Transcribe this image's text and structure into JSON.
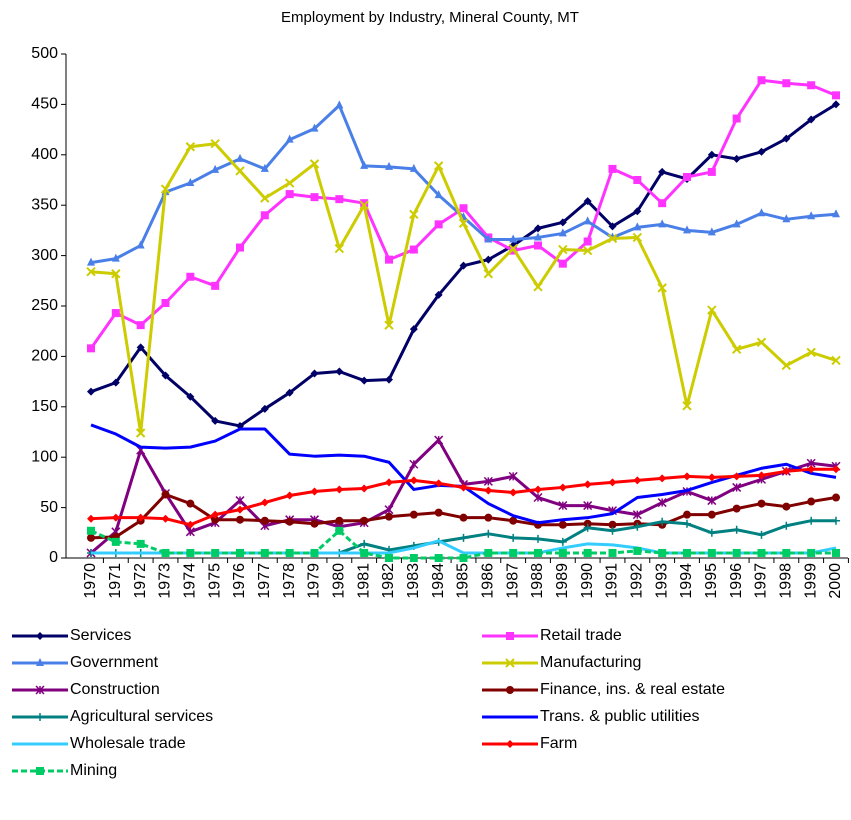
{
  "chart_data": {
    "type": "line",
    "title": "Employment by Industry, Mineral County, MT",
    "categories": [
      "1970",
      "1971",
      "1972",
      "1973",
      "1974",
      "1975",
      "1976",
      "1977",
      "1978",
      "1979",
      "1980",
      "1981",
      "1982",
      "1983",
      "1984",
      "1985",
      "1986",
      "1987",
      "1988",
      "1989",
      "1990",
      "1991",
      "1992",
      "1993",
      "1994",
      "1995",
      "1996",
      "1997",
      "1998",
      "1999",
      "2000"
    ],
    "ylim": [
      0,
      500
    ],
    "yticks": [
      0,
      50,
      100,
      150,
      200,
      250,
      300,
      350,
      400,
      450,
      500
    ],
    "grid": false,
    "series": [
      {
        "name": "Services",
        "color": "#000066",
        "marker": "diamond",
        "values": [
          165,
          174,
          209,
          181,
          160,
          136,
          131,
          148,
          164,
          183,
          185,
          176,
          177,
          227,
          261,
          290,
          296,
          310,
          327,
          333,
          354,
          329,
          344,
          383,
          376,
          400,
          396,
          403,
          416,
          435,
          450
        ]
      },
      {
        "name": "Retail trade",
        "color": "#FF33FF",
        "marker": "square",
        "values": [
          208,
          243,
          231,
          253,
          279,
          270,
          308,
          340,
          361,
          358,
          356,
          352,
          296,
          306,
          331,
          347,
          318,
          305,
          310,
          292,
          314,
          386,
          375,
          352,
          378,
          383,
          436,
          474,
          471,
          469,
          459
        ]
      },
      {
        "name": "Government",
        "color": "#4A7FE8",
        "marker": "triangle",
        "values": [
          293,
          297,
          310,
          363,
          372,
          385,
          396,
          386,
          415,
          426,
          449,
          389,
          388,
          386,
          360,
          338,
          316,
          316,
          318,
          322,
          334,
          318,
          328,
          331,
          325,
          323,
          331,
          342,
          336,
          339,
          341
        ]
      },
      {
        "name": "Manufacturing",
        "color": "#CCCC00",
        "marker": "x",
        "values": [
          284,
          282,
          124,
          366,
          408,
          411,
          384,
          357,
          372,
          391,
          307,
          350,
          231,
          341,
          389,
          332,
          282,
          307,
          269,
          306,
          305,
          317,
          318,
          268,
          151,
          246,
          207,
          214,
          191,
          204,
          196
        ]
      },
      {
        "name": "Construction",
        "color": "#800080",
        "marker": "star",
        "values": [
          5,
          26,
          107,
          64,
          26,
          35,
          57,
          32,
          38,
          38,
          31,
          35,
          48,
          93,
          117,
          73,
          76,
          81,
          60,
          52,
          52,
          47,
          43,
          55,
          66,
          57,
          70,
          78,
          86,
          94,
          91
        ]
      },
      {
        "name": "Finance, ins. & real estate",
        "color": "#800000",
        "marker": "circle",
        "values": [
          20,
          21,
          37,
          63,
          54,
          38,
          38,
          37,
          36,
          34,
          37,
          37,
          41,
          43,
          45,
          40,
          40,
          37,
          33,
          33,
          34,
          33,
          34,
          33,
          43,
          43,
          49,
          54,
          51,
          56,
          60
        ]
      },
      {
        "name": "Agricultural services",
        "color": "#008080",
        "marker": "plus",
        "values": [
          5,
          5,
          5,
          5,
          5,
          5,
          5,
          5,
          5,
          5,
          5,
          14,
          8,
          12,
          16,
          20,
          24,
          20,
          19,
          16,
          30,
          27,
          31,
          36,
          34,
          25,
          28,
          23,
          32,
          37,
          37
        ]
      },
      {
        "name": "Trans. & public utilities",
        "color": "#0000FF",
        "marker": "none",
        "values": [
          132,
          123,
          110,
          109,
          110,
          116,
          128,
          128,
          103,
          101,
          102,
          101,
          95,
          68,
          72,
          71,
          54,
          42,
          35,
          38,
          40,
          44,
          60,
          63,
          67,
          75,
          82,
          89,
          93,
          84,
          80
        ]
      },
      {
        "name": "Wholesale trade",
        "color": "#33CCFF",
        "marker": "none",
        "values": [
          5,
          5,
          5,
          5,
          5,
          5,
          5,
          5,
          5,
          5,
          5,
          5,
          5,
          10,
          17,
          5,
          5,
          5,
          5,
          10,
          14,
          13,
          10,
          5,
          5,
          5,
          5,
          5,
          5,
          5,
          10
        ]
      },
      {
        "name": "Farm",
        "color": "#FF0000",
        "marker": "diamond",
        "values": [
          39,
          40,
          40,
          39,
          33,
          43,
          48,
          55,
          62,
          66,
          68,
          69,
          75,
          77,
          74,
          70,
          67,
          65,
          68,
          70,
          73,
          75,
          77,
          79,
          81,
          80,
          81,
          82,
          86,
          88,
          88
        ]
      },
      {
        "name": "Mining",
        "color": "#00CC66",
        "marker": "square",
        "dash": true,
        "values": [
          27,
          16,
          14,
          5,
          5,
          5,
          5,
          5,
          5,
          5,
          27,
          5,
          0,
          0,
          0,
          0,
          5,
          5,
          5,
          5,
          5,
          5,
          7,
          5,
          5,
          5,
          5,
          5,
          5,
          5,
          5
        ]
      }
    ]
  }
}
